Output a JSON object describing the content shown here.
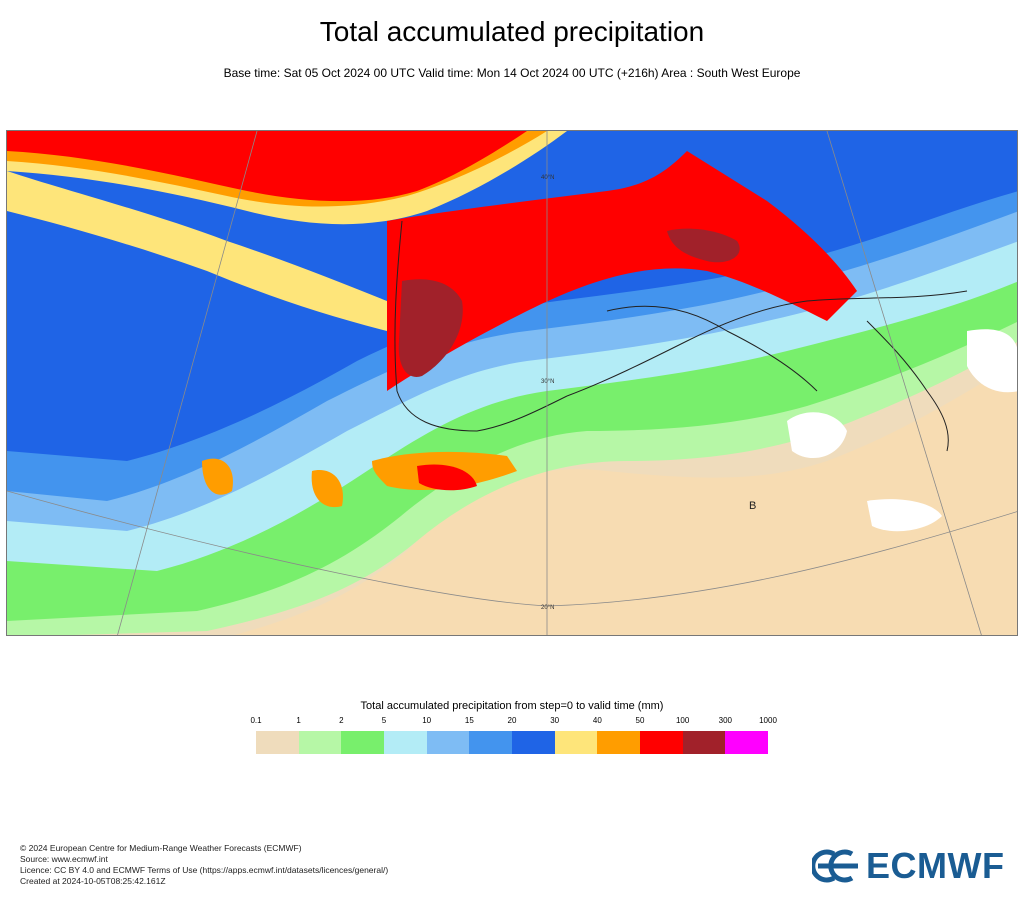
{
  "header": {
    "title": "Total accumulated precipitation",
    "subtitle": "Base time: Sat 05 Oct 2024 00 UTC Valid time: Mon 14 Oct 2024 00 UTC (+216h) Area : South West Europe"
  },
  "map": {
    "lat_labels": [
      "40°N",
      "30°N",
      "20°N"
    ],
    "marker_letter": "B"
  },
  "legend": {
    "title": "Total accumulated precipitation from step=0 to valid time (mm)",
    "ticks": [
      "0.1",
      "1",
      "2",
      "5",
      "10",
      "15",
      "20",
      "30",
      "40",
      "50",
      "100",
      "300",
      "1000"
    ],
    "colors": [
      "#efdcbc",
      "#b6f7a6",
      "#78ef6c",
      "#b3ecf6",
      "#7ebcf4",
      "#4394ee",
      "#1f64e6",
      "#fee57a",
      "#ff9d00",
      "#ff0000",
      "#a1212a",
      "#ff00ff"
    ]
  },
  "footer": {
    "lines": [
      "© 2024 European Centre for Medium-Range Weather Forecasts (ECMWF)",
      "Source: www.ecmwf.int",
      "Licence: CC BY 4.0 and ECMWF Terms of Use (https://apps.ecmwf.int/datasets/licences/general/)",
      "Created at 2024-10-05T08:25:42.161Z"
    ]
  },
  "logo": {
    "text": "ECMWF",
    "color": "#1a5c93"
  }
}
